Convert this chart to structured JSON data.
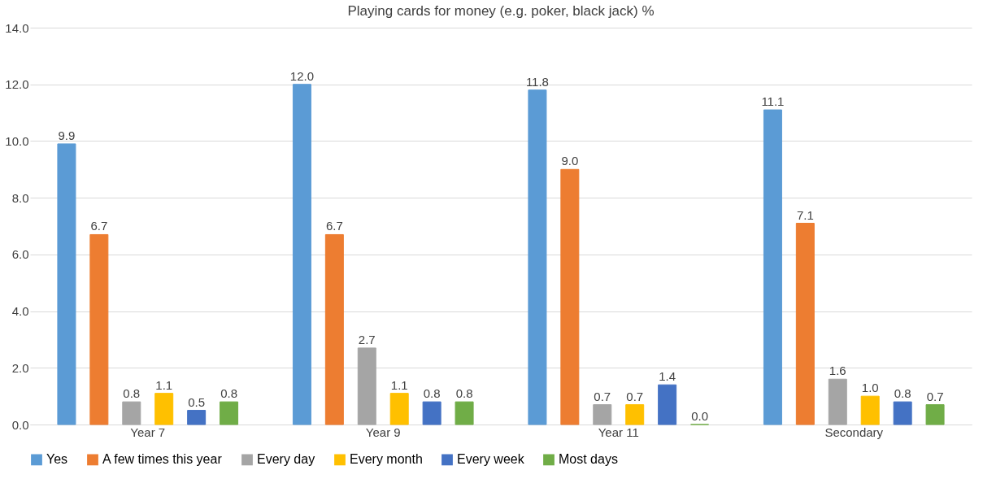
{
  "chart_data": {
    "type": "bar",
    "title": "Playing cards for money (e.g. poker, black jack) %",
    "categories": [
      "Year 7",
      "Year 9",
      "Year 11",
      "Secondary"
    ],
    "series": [
      {
        "name": "Yes",
        "color": "#5b9bd5",
        "values": [
          9.9,
          12.0,
          11.8,
          11.1
        ],
        "value_labels": [
          "9.9",
          "12.0",
          "11.8",
          "11.1"
        ]
      },
      {
        "name": "A few times this year",
        "color": "#ed7d31",
        "values": [
          6.7,
          6.7,
          9.0,
          7.1
        ],
        "value_labels": [
          "6.7",
          "6.7",
          "9.0",
          "7.1"
        ]
      },
      {
        "name": "Every day",
        "color": "#a5a5a5",
        "values": [
          0.8,
          2.7,
          0.7,
          1.6
        ],
        "value_labels": [
          "0.8",
          "2.7",
          "0.7",
          "1.6"
        ]
      },
      {
        "name": "Every month",
        "color": "#ffc000",
        "values": [
          1.1,
          1.1,
          0.7,
          1.0
        ],
        "value_labels": [
          "1.1",
          "1.1",
          "0.7",
          "1.0"
        ]
      },
      {
        "name": "Every week",
        "color": "#4472c4",
        "values": [
          0.5,
          0.8,
          1.4,
          0.8
        ],
        "value_labels": [
          "0.5",
          "0.8",
          "1.4",
          "0.8"
        ]
      },
      {
        "name": "Most days",
        "color": "#70ad47",
        "values": [
          0.8,
          0.8,
          0.0,
          0.7
        ],
        "value_labels": [
          "0.8",
          "0.8",
          "0.0",
          "0.7"
        ]
      }
    ],
    "ylim": [
      0,
      14
    ],
    "yticks": [
      {
        "value": 0,
        "label": "0.0"
      },
      {
        "value": 2,
        "label": "2.0"
      },
      {
        "value": 4,
        "label": "4.0"
      },
      {
        "value": 6,
        "label": "6.0"
      },
      {
        "value": 8,
        "label": "8.0"
      },
      {
        "value": 10,
        "label": "10.0"
      },
      {
        "value": 12,
        "label": "12.0"
      },
      {
        "value": 14,
        "label": "14.0"
      }
    ],
    "grid": "y",
    "legend": "bottom"
  }
}
